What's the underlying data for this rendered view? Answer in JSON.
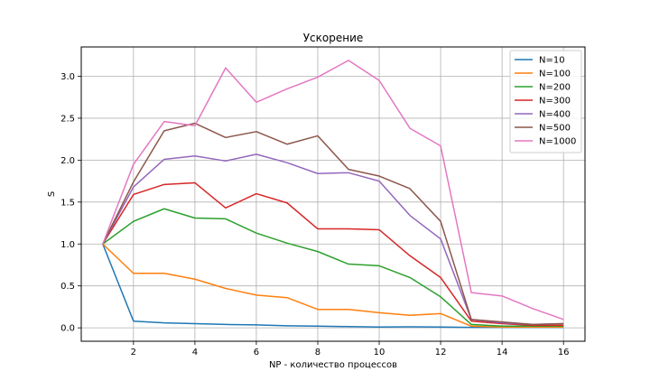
{
  "chart_data": {
    "type": "line",
    "title": "Ускорение",
    "xlabel": "NP - количество процессов",
    "ylabel": "S",
    "xlim": [
      0.3,
      16.7
    ],
    "ylim": [
      -0.16,
      3.35
    ],
    "xticks": [
      2,
      4,
      6,
      8,
      10,
      12,
      14,
      16
    ],
    "yticks": [
      0.0,
      0.5,
      1.0,
      1.5,
      2.0,
      2.5,
      3.0
    ],
    "xtick_labels": [
      "2",
      "4",
      "6",
      "8",
      "10",
      "12",
      "14",
      "16"
    ],
    "ytick_labels": [
      "0.0",
      "0.5",
      "1.0",
      "1.5",
      "2.0",
      "2.5",
      "3.0"
    ],
    "grid": true,
    "legend_position": "top-right",
    "x": [
      1,
      2,
      3,
      4,
      5,
      6,
      7,
      8,
      9,
      10,
      11,
      12,
      13,
      14,
      15,
      16
    ],
    "series": [
      {
        "name": "N=10",
        "color": "#1f77b4",
        "values": [
          1.0,
          0.08,
          0.06,
          0.05,
          0.04,
          0.035,
          0.025,
          0.02,
          0.015,
          0.01,
          0.012,
          0.01,
          0.005,
          0.005,
          0.005,
          0.005
        ]
      },
      {
        "name": "N=100",
        "color": "#ff7f0e",
        "values": [
          1.0,
          0.65,
          0.65,
          0.58,
          0.47,
          0.39,
          0.36,
          0.22,
          0.22,
          0.18,
          0.15,
          0.17,
          0.02,
          0.01,
          0.01,
          0.01
        ]
      },
      {
        "name": "N=200",
        "color": "#2ca02c",
        "values": [
          1.0,
          1.27,
          1.42,
          1.31,
          1.3,
          1.13,
          1.01,
          0.91,
          0.76,
          0.74,
          0.6,
          0.37,
          0.04,
          0.02,
          0.02,
          0.02
        ]
      },
      {
        "name": "N=300",
        "color": "#d62728",
        "values": [
          1.0,
          1.59,
          1.71,
          1.73,
          1.43,
          1.6,
          1.49,
          1.18,
          1.18,
          1.17,
          0.86,
          0.6,
          0.08,
          0.05,
          0.03,
          0.03
        ]
      },
      {
        "name": "N=400",
        "color": "#9467bd",
        "values": [
          1.0,
          1.68,
          2.01,
          2.05,
          1.99,
          2.07,
          1.97,
          1.84,
          1.85,
          1.75,
          1.34,
          1.06,
          0.1,
          0.06,
          0.04,
          0.05
        ]
      },
      {
        "name": "N=500",
        "color": "#8c564b",
        "values": [
          1.0,
          1.74,
          2.35,
          2.44,
          2.27,
          2.34,
          2.19,
          2.29,
          1.89,
          1.81,
          1.66,
          1.27,
          0.1,
          0.07,
          0.04,
          0.05
        ]
      },
      {
        "name": "N=1000",
        "color": "#e377c2",
        "values": [
          1.0,
          1.95,
          2.46,
          2.41,
          3.1,
          2.69,
          2.85,
          2.99,
          3.19,
          2.95,
          2.38,
          2.17,
          0.42,
          0.38,
          0.23,
          0.1
        ]
      }
    ]
  }
}
